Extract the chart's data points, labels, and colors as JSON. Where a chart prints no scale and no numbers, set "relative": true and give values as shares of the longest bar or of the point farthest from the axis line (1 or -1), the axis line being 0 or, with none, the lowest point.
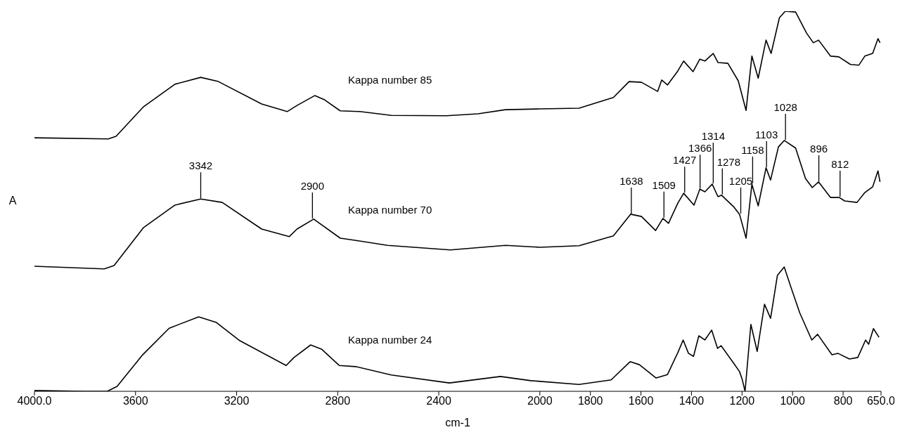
{
  "chart_data": {
    "type": "line",
    "relative": true,
    "xlabel": "cm-1",
    "ylabel": "A",
    "xlim": [
      4000,
      650
    ],
    "xticks": [
      {
        "value": 4000,
        "label": "4000.0"
      },
      3600,
      3200,
      2800,
      2400,
      2000,
      1800,
      1600,
      1400,
      1200,
      1000,
      800,
      {
        "value": 650,
        "label": "650.0"
      }
    ],
    "series": [
      {
        "name": "Kappa number 85",
        "color": "#000000",
        "x": [
          4000,
          3708,
          3677,
          3568,
          3444,
          3342,
          3272,
          3101,
          3000,
          2961,
          2891,
          2852,
          2790,
          2712,
          2588,
          2370,
          2245,
          2136,
          2000,
          1845,
          1709,
          1647,
          1598,
          1534,
          1518,
          1495,
          1454,
          1431,
          1394,
          1367,
          1347,
          1314,
          1295,
          1256,
          1215,
          1184,
          1161,
          1136,
          1105,
          1085,
          1052,
          1029,
          988,
          945,
          918,
          897,
          850,
          817,
          771,
          738,
          714,
          683,
          662,
          654
        ],
        "values": [
          0.667,
          0.664,
          0.671,
          0.749,
          0.808,
          0.826,
          0.815,
          0.756,
          0.736,
          0.752,
          0.778,
          0.767,
          0.738,
          0.736,
          0.726,
          0.725,
          0.73,
          0.741,
          0.743,
          0.745,
          0.773,
          0.815,
          0.813,
          0.789,
          0.819,
          0.806,
          0.843,
          0.869,
          0.841,
          0.874,
          0.869,
          0.889,
          0.865,
          0.863,
          0.817,
          0.739,
          0.882,
          0.824,
          0.924,
          0.889,
          0.983,
          1,
          0.998,
          0.943,
          0.917,
          0.924,
          0.882,
          0.88,
          0.86,
          0.858,
          0.882,
          0.889,
          0.928,
          0.917
        ]
      },
      {
        "name": "Kappa number 70",
        "color": "#000000",
        "x": [
          4000,
          3724,
          3685,
          3568,
          3444,
          3342,
          3257,
          3101,
          2992,
          2961,
          2895,
          2790,
          2728,
          2603,
          2354,
          2136,
          2000,
          1845,
          1709,
          1641,
          1598,
          1542,
          1513,
          1491,
          1454,
          1431,
          1390,
          1367,
          1347,
          1318,
          1295,
          1281,
          1231,
          1210,
          1184,
          1161,
          1136,
          1105,
          1087,
          1056,
          1033,
          988,
          949,
          922,
          897,
          850,
          815,
          794,
          745,
          714,
          683,
          662,
          654
        ],
        "values": [
          0.329,
          0.322,
          0.331,
          0.431,
          0.49,
          0.506,
          0.497,
          0.427,
          0.407,
          0.427,
          0.453,
          0.403,
          0.397,
          0.384,
          0.372,
          0.384,
          0.379,
          0.383,
          0.409,
          0.466,
          0.46,
          0.423,
          0.455,
          0.442,
          0.495,
          0.521,
          0.49,
          0.532,
          0.525,
          0.545,
          0.512,
          0.516,
          0.484,
          0.466,
          0.403,
          0.545,
          0.488,
          0.588,
          0.556,
          0.643,
          0.66,
          0.64,
          0.56,
          0.536,
          0.551,
          0.51,
          0.51,
          0.501,
          0.497,
          0.523,
          0.538,
          0.58,
          0.551
        ]
      },
      {
        "name": "Kappa number 24",
        "color": "#000000",
        "x": [
          4000,
          3805,
          3712,
          3673,
          3572,
          3467,
          3350,
          3280,
          3187,
          3004,
          2973,
          2907,
          2864,
          2794,
          2728,
          2588,
          2358,
          2156,
          2035,
          1845,
          1718,
          1643,
          1606,
          1540,
          1495,
          1454,
          1433,
          1412,
          1392,
          1371,
          1347,
          1320,
          1297,
          1283,
          1233,
          1210,
          1200,
          1188,
          1165,
          1140,
          1111,
          1087,
          1060,
          1033,
          1011,
          972,
          924,
          901,
          844,
          821,
          775,
          742,
          711,
          699,
          680,
          658
        ],
        "values": [
          0.002,
          0,
          0,
          0.013,
          0.096,
          0.166,
          0.196,
          0.181,
          0.133,
          0.068,
          0.089,
          0.122,
          0.111,
          0.068,
          0.065,
          0.043,
          0.022,
          0.039,
          0.028,
          0.018,
          0.03,
          0.078,
          0.07,
          0.035,
          0.044,
          0.102,
          0.135,
          0.1,
          0.092,
          0.146,
          0.135,
          0.161,
          0.113,
          0.12,
          0.074,
          0.052,
          0.033,
          0,
          0.176,
          0.105,
          0.229,
          0.192,
          0.305,
          0.327,
          0.283,
          0.207,
          0.135,
          0.15,
          0.096,
          0.1,
          0.085,
          0.089,
          0.135,
          0.124,
          0.165,
          0.142
        ]
      }
    ],
    "annotations": [
      {
        "text": "3342",
        "x": 3342,
        "y": 0.506
      },
      {
        "text": "2900",
        "x": 2900,
        "y": 0.453
      },
      {
        "text": "1638",
        "x": 1638,
        "y": 0.466
      },
      {
        "text": "1509",
        "x": 1509,
        "y": 0.455
      },
      {
        "text": "1427",
        "x": 1427,
        "y": 0.521
      },
      {
        "text": "1366",
        "x": 1366,
        "y": 0.532
      },
      {
        "text": "1314",
        "x": 1314,
        "y": 0.545
      },
      {
        "text": "1278",
        "x": 1278,
        "y": 0.516
      },
      {
        "text": "1205",
        "x": 1205,
        "y": 0.466
      },
      {
        "text": "1158",
        "x": 1158,
        "y": 0.545
      },
      {
        "text": "1103",
        "x": 1103,
        "y": 0.588
      },
      {
        "text": "1028",
        "x": 1028,
        "y": 0.66
      },
      {
        "text": "896",
        "x": 896,
        "y": 0.551
      },
      {
        "text": "812",
        "x": 812,
        "y": 0.51
      }
    ]
  }
}
